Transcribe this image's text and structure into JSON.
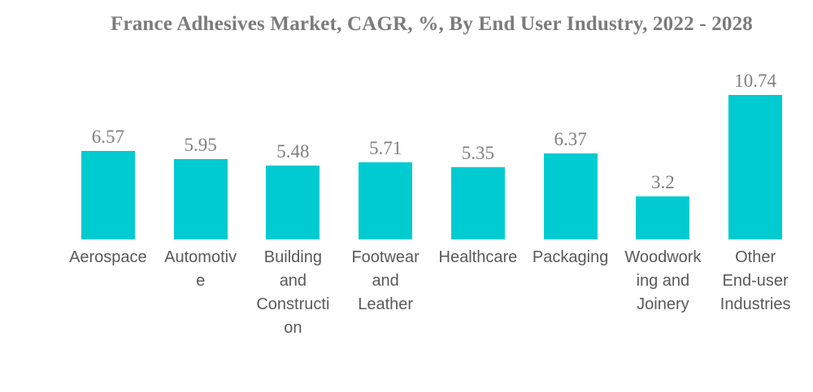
{
  "chart_data": {
    "type": "bar",
    "title": "France Adhesives Market, CAGR, %, By End User Industry, 2022 - 2028",
    "unit": "%",
    "categories": [
      "Aerospace",
      "Automotive",
      "Building and Construction",
      "Footwear and Leather",
      "Healthcare",
      "Packaging",
      "Woodworking and Joinery",
      "Other End-user Industries"
    ],
    "category_label_lines": [
      [
        "Aerospace"
      ],
      [
        "Automotiv",
        "e"
      ],
      [
        "Building",
        "and",
        "Constructi",
        "on"
      ],
      [
        "Footwear",
        "and",
        "Leather"
      ],
      [
        "Healthcare"
      ],
      [
        "Packaging"
      ],
      [
        "Woodwork",
        "ing and",
        "Joinery"
      ],
      [
        "Other",
        "End-user",
        "Industries"
      ]
    ],
    "values": [
      6.57,
      5.95,
      5.48,
      5.71,
      5.35,
      6.37,
      3.2,
      10.74
    ],
    "value_labels": [
      "6.57",
      "5.95",
      "5.48",
      "5.71",
      "5.35",
      "6.37",
      "3.2",
      "10.74"
    ],
    "ylim": [
      0,
      10.74
    ],
    "bar_color": "#00cbd1",
    "title_color": "#7b7b7b",
    "value_label_color": "#7f7f7f",
    "category_label_color": "#595959",
    "grid": false,
    "legend": false,
    "axes_visible": false
  }
}
